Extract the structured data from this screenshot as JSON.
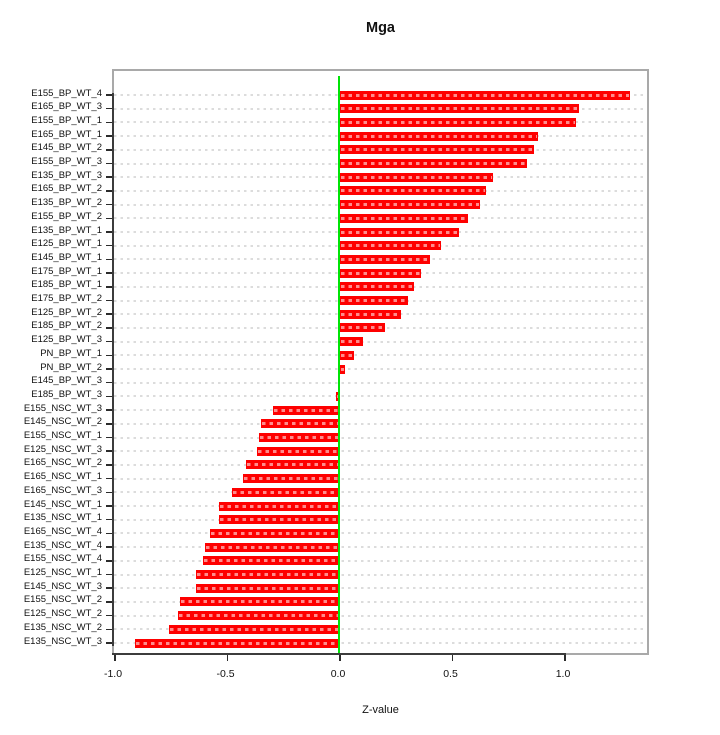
{
  "title": "Mga",
  "chart_data": {
    "type": "bar",
    "orientation": "horizontal",
    "title": "Mga",
    "xlabel": "Z-value",
    "ylabel": "",
    "xlim": [
      -1.0,
      1.38
    ],
    "xticks": [
      -1.0,
      -0.5,
      0.0,
      0.5,
      1.0
    ],
    "grid": true,
    "bar_color": "#fe0000",
    "zero_line_color": "#00e407",
    "gridline_color": "#dcdcdc",
    "categories": [
      "E155_BP_WT_4",
      "E165_BP_WT_3",
      "E155_BP_WT_1",
      "E165_BP_WT_1",
      "E145_BP_WT_2",
      "E155_BP_WT_3",
      "E135_BP_WT_3",
      "E165_BP_WT_2",
      "E135_BP_WT_2",
      "E155_BP_WT_2",
      "E135_BP_WT_1",
      "E125_BP_WT_1",
      "E145_BP_WT_1",
      "E175_BP_WT_1",
      "E185_BP_WT_1",
      "E175_BP_WT_2",
      "E125_BP_WT_2",
      "E185_BP_WT_2",
      "E125_BP_WT_3",
      "PN_BP_WT_1",
      "PN_BP_WT_2",
      "E145_BP_WT_3",
      "E185_BP_WT_3",
      "E155_NSC_WT_3",
      "E145_NSC_WT_2",
      "E155_NSC_WT_1",
      "E125_NSC_WT_3",
      "E165_NSC_WT_2",
      "E165_NSC_WT_1",
      "E165_NSC_WT_3",
      "E145_NSC_WT_1",
      "E135_NSC_WT_1",
      "E165_NSC_WT_4",
      "E135_NSC_WT_4",
      "E155_NSC_WT_4",
      "E125_NSC_WT_1",
      "E145_NSC_WT_3",
      "E155_NSC_WT_2",
      "E125_NSC_WT_2",
      "E135_NSC_WT_2",
      "E135_NSC_WT_3"
    ],
    "values": [
      1.29,
      1.06,
      1.05,
      0.88,
      0.86,
      0.83,
      0.68,
      0.65,
      0.62,
      0.57,
      0.53,
      0.45,
      0.4,
      0.36,
      0.33,
      0.3,
      0.27,
      0.2,
      0.1,
      0.06,
      0.02,
      -0.01,
      -0.02,
      -0.3,
      -0.35,
      -0.36,
      -0.37,
      -0.42,
      -0.43,
      -0.48,
      -0.54,
      -0.54,
      -0.58,
      -0.6,
      -0.61,
      -0.64,
      -0.64,
      -0.71,
      -0.72,
      -0.76,
      -0.91
    ]
  }
}
